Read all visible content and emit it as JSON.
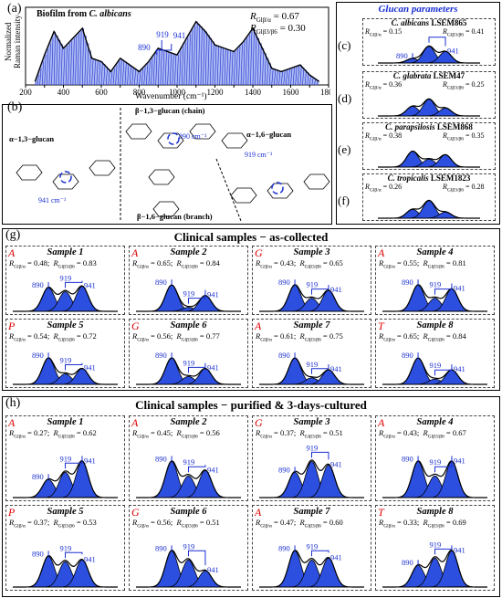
{
  "panel_a": {
    "label": "(a)",
    "title_prefix": "Biofilm from ",
    "title_species": "C. albicans",
    "ylabel_1": "Normalized",
    "ylabel_2": "Raman intensity",
    "xlabel": "Wavenumber (cm⁻¹)",
    "r1": "R",
    "r1_sub": "Glβ/α",
    "r1_val": " = 0.67",
    "r2": "R",
    "r2_sub": "Glβ3/β6",
    "r2_val": " = 0.30",
    "peaks": [
      "890",
      "919",
      "941"
    ]
  },
  "chart_data": {
    "type": "line",
    "title": "Biofilm from C. albicans",
    "xlabel": "Wavenumber (cm⁻¹)",
    "ylabel": "Normalized Raman intensity",
    "xlim": [
      200,
      1800
    ],
    "xticks": [
      200,
      300,
      400,
      500,
      600,
      700,
      800,
      900,
      1000,
      1100,
      1200,
      1300,
      1400,
      1500,
      1600,
      1700,
      1800
    ],
    "x": [
      250,
      300,
      350,
      400,
      450,
      500,
      550,
      600,
      650,
      700,
      750,
      800,
      850,
      900,
      950,
      1000,
      1050,
      1100,
      1150,
      1200,
      1250,
      1300,
      1350,
      1400,
      1450,
      1500,
      1550,
      1600,
      1650,
      1700,
      1750
    ],
    "y": [
      0.05,
      0.45,
      0.8,
      0.55,
      0.7,
      0.85,
      0.4,
      0.35,
      0.2,
      0.4,
      0.3,
      0.2,
      0.35,
      0.55,
      0.5,
      0.45,
      0.7,
      0.95,
      0.8,
      0.6,
      0.55,
      0.5,
      0.65,
      0.85,
      0.55,
      0.25,
      0.2,
      0.25,
      0.3,
      0.15,
      0.05
    ]
  },
  "panel_b": {
    "label": "(b)",
    "chain": "β−1,3−glucan (chain)",
    "a13": "α−1,3−glucan",
    "a16": "α−1,6−glucan",
    "branch": "β−1,6−glucan (branch)",
    "w890": "890 cm⁻¹",
    "w941": "941 cm⁻¹",
    "w919": "919 cm⁻¹"
  },
  "glucan": {
    "title": "Glucan parameters",
    "panels": [
      {
        "letter": "(c)",
        "species": "C. albicans",
        "strain": " LSEM865",
        "r1": "0.15",
        "r2": "0.41",
        "show_labels": true,
        "heights": [
          0.25,
          0.95,
          0.65
        ]
      },
      {
        "letter": "(d)",
        "species": "C. glabrata",
        "strain": " LSEM47",
        "r1": "0.36",
        "r2": "0.25",
        "show_labels": false,
        "heights": [
          0.55,
          0.95,
          0.45
        ]
      },
      {
        "letter": "(e)",
        "species": "C. parapsilosis",
        "strain": " LSEM868",
        "r1": "0.38",
        "r2": "0.35",
        "show_labels": false,
        "heights": [
          0.9,
          0.45,
          0.7
        ]
      },
      {
        "letter": "(f)",
        "species": "C. tropicalis",
        "strain": " LSEM1823",
        "r1": "0.26",
        "r2": "0.28",
        "show_labels": false,
        "heights": [
          0.5,
          1.0,
          0.35
        ]
      }
    ]
  },
  "clinical_g": {
    "label": "(g)",
    "title": "Clinical samples − as-collected",
    "samples": [
      {
        "letter": "A",
        "name": "Sample 1",
        "r1": "0.48",
        "r2": "0.83",
        "heights": [
          0.9,
          0.75,
          0.95
        ]
      },
      {
        "letter": "A",
        "name": "Sample 2",
        "r1": "0.65",
        "r2": "0.84",
        "heights": [
          1.0,
          0.15,
          0.6
        ]
      },
      {
        "letter": "G",
        "name": "Sample 3",
        "r1": "0.43",
        "r2": "0.65",
        "heights": [
          1.0,
          0.5,
          0.8
        ]
      },
      {
        "letter": "A",
        "name": "Sample 4",
        "r1": "0.55",
        "r2": "0.81",
        "heights": [
          1.0,
          0.5,
          0.85
        ]
      },
      {
        "letter": "P",
        "name": "Sample 5",
        "r1": "0.54",
        "r2": "0.72",
        "heights": [
          1.0,
          0.4,
          0.6
        ]
      },
      {
        "letter": "G",
        "name": "Sample 6",
        "r1": "0.56",
        "r2": "0.77",
        "heights": [
          1.0,
          0.3,
          0.6
        ]
      },
      {
        "letter": "A",
        "name": "Sample 7",
        "r1": "0.61",
        "r2": "0.75",
        "heights": [
          1.0,
          0.25,
          0.55
        ]
      },
      {
        "letter": "T",
        "name": "Sample 8",
        "r1": "0.65",
        "r2": "0.84",
        "heights": [
          1.0,
          0.2,
          0.55
        ]
      }
    ]
  },
  "clinical_h": {
    "label": "(h)",
    "title": "Clinical samples − purified & 3-days-cultured",
    "samples": [
      {
        "letter": "A",
        "name": "Sample 1",
        "r1": "0.27",
        "r2": "0.62",
        "heights": [
          0.5,
          0.7,
          1.0
        ]
      },
      {
        "letter": "A",
        "name": "Sample 2",
        "r1": "0.45",
        "r2": "0.56",
        "heights": [
          1.0,
          0.6,
          0.75
        ]
      },
      {
        "letter": "G",
        "name": "Sample 3",
        "r1": "0.37",
        "r2": "0.51",
        "heights": [
          0.7,
          1.0,
          0.9
        ]
      },
      {
        "letter": "A",
        "name": "Sample 4",
        "r1": "0.43",
        "r2": "0.67",
        "heights": [
          1.0,
          0.6,
          1.0
        ]
      },
      {
        "letter": "P",
        "name": "Sample 5",
        "r1": "0.37",
        "r2": "0.53",
        "heights": [
          0.85,
          0.7,
          0.75
        ]
      },
      {
        "letter": "G",
        "name": "Sample 6",
        "r1": "0.56",
        "r2": "0.51",
        "heights": [
          1.0,
          0.75,
          0.45
        ]
      },
      {
        "letter": "A",
        "name": "Sample 7",
        "r1": "0.47",
        "r2": "0.60",
        "heights": [
          1.0,
          0.75,
          0.8
        ]
      },
      {
        "letter": "T",
        "name": "Sample 8",
        "r1": "0.33",
        "r2": "0.69",
        "heights": [
          0.6,
          0.8,
          1.0
        ]
      }
    ]
  }
}
